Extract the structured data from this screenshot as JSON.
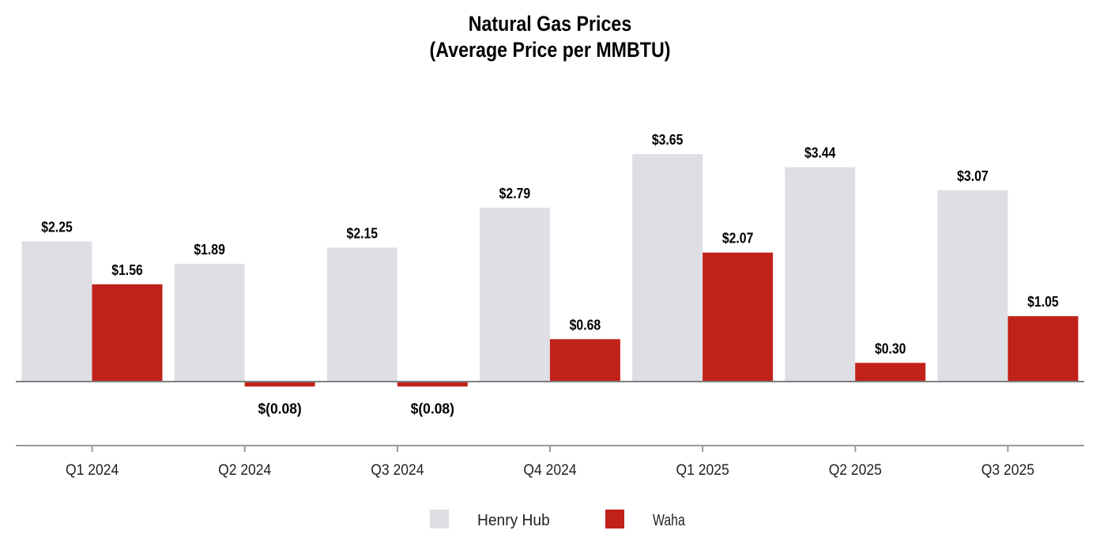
{
  "chart_data": {
    "type": "bar",
    "title": "Natural Gas Prices",
    "subtitle": "(Average Price per MMBTU)",
    "categories": [
      "Q1 2024",
      "Q2 2024",
      "Q3 2024",
      "Q4 2024",
      "Q1 2025",
      "Q2 2025",
      "Q3 2025"
    ],
    "series": [
      {
        "name": "Henry Hub",
        "color": "#dedfe4",
        "values": [
          2.25,
          1.89,
          2.15,
          2.79,
          3.65,
          3.44,
          3.07
        ],
        "labels": [
          "$2.25",
          "$1.89",
          "$2.15",
          "$2.79",
          "$3.65",
          "$3.44",
          "$3.07"
        ]
      },
      {
        "name": "Waha",
        "color": "#c0221a",
        "values": [
          1.56,
          -0.08,
          -0.08,
          0.68,
          2.07,
          0.3,
          1.05
        ],
        "labels": [
          "$1.56",
          "$(0.08)",
          "$(0.08)",
          "$0.68",
          "$2.07",
          "$0.30",
          "$1.05"
        ]
      }
    ],
    "ylim": [
      -1.0,
      4.0
    ],
    "grid": false,
    "legend": "bottom-center",
    "zero_line": true
  }
}
